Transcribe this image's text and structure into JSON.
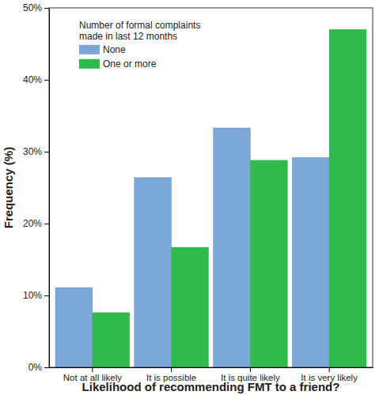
{
  "chart_data": {
    "type": "bar",
    "x_label": "Likelihood of recommending FMT to a friend?",
    "y_label": "Frequency (%)",
    "legend_title": "Number of formal complaints made in last 12 months",
    "legend": "top-left",
    "categories": [
      "Not at all likely",
      "It is possible",
      "It is quite likely",
      "It is very likely"
    ],
    "series": [
      {
        "name": "None",
        "color": "#7ba7d9",
        "values": [
          11.1,
          26.4,
          33.3,
          29.2
        ]
      },
      {
        "name": "One or more",
        "color": "#2fba4d",
        "values": [
          7.6,
          16.7,
          28.8,
          47.0
        ]
      }
    ],
    "ylim": [
      0,
      50
    ],
    "yticks": [
      {
        "value": 0,
        "label": "0%"
      },
      {
        "value": 10,
        "label": "10%"
      },
      {
        "value": 20,
        "label": "20%"
      },
      {
        "value": 30,
        "label": "30%"
      },
      {
        "value": 40,
        "label": "40%"
      },
      {
        "value": 50,
        "label": "50%"
      }
    ],
    "grid": false
  }
}
